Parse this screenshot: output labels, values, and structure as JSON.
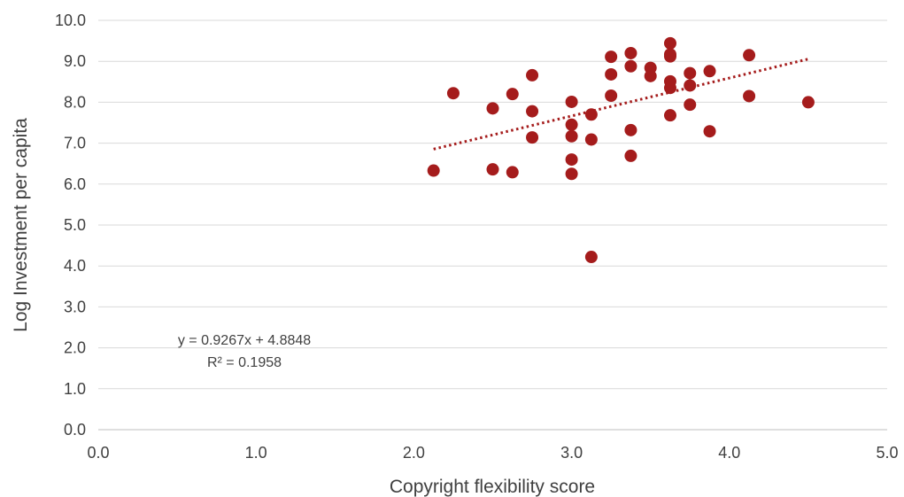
{
  "chart_data": {
    "type": "scatter",
    "xlabel": "Copyright flexibility score",
    "ylabel": "Log Investment per capita",
    "xlim": [
      0,
      5
    ],
    "ylim": [
      0,
      10
    ],
    "x_ticks": [
      "0.0",
      "1.0",
      "2.0",
      "3.0",
      "4.0",
      "5.0"
    ],
    "y_ticks": [
      "0.0",
      "1.0",
      "2.0",
      "3.0",
      "4.0",
      "5.0",
      "6.0",
      "7.0",
      "8.0",
      "9.0",
      "10.0"
    ],
    "grid": "horizontal",
    "marker_color": "#a51c1c",
    "trendline_color": "#a51c1c",
    "series": [
      {
        "points": [
          [
            2.125,
            6.33
          ],
          [
            2.25,
            8.22
          ],
          [
            2.5,
            7.85
          ],
          [
            2.5,
            6.36
          ],
          [
            2.625,
            8.2
          ],
          [
            2.625,
            6.29
          ],
          [
            2.75,
            8.66
          ],
          [
            2.75,
            7.78
          ],
          [
            2.75,
            7.14
          ],
          [
            3.0,
            8.01
          ],
          [
            3.0,
            7.45
          ],
          [
            3.0,
            7.17
          ],
          [
            3.0,
            6.6
          ],
          [
            3.0,
            6.25
          ],
          [
            3.125,
            7.7
          ],
          [
            3.125,
            7.09
          ],
          [
            3.125,
            4.22
          ],
          [
            3.25,
            9.11
          ],
          [
            3.25,
            8.68
          ],
          [
            3.25,
            8.16
          ],
          [
            3.375,
            9.2
          ],
          [
            3.375,
            8.88
          ],
          [
            3.375,
            7.32
          ],
          [
            3.375,
            6.69
          ],
          [
            3.5,
            8.84
          ],
          [
            3.5,
            8.64
          ],
          [
            3.625,
            9.44
          ],
          [
            3.625,
            9.17
          ],
          [
            3.625,
            9.12
          ],
          [
            3.625,
            8.51
          ],
          [
            3.625,
            8.35
          ],
          [
            3.625,
            7.68
          ],
          [
            3.75,
            8.71
          ],
          [
            3.75,
            8.41
          ],
          [
            3.75,
            7.94
          ],
          [
            3.875,
            8.76
          ],
          [
            3.875,
            7.29
          ],
          [
            4.125,
            9.15
          ],
          [
            4.125,
            8.15
          ],
          [
            4.5,
            8.0
          ]
        ]
      }
    ],
    "trendline": {
      "type": "linear",
      "slope": 0.9267,
      "intercept": 4.8848,
      "x_range": [
        2.125,
        4.5
      ],
      "equation_label": "y = 0.9267x + 4.8848",
      "r2_label": "R² = 0.1958"
    }
  }
}
